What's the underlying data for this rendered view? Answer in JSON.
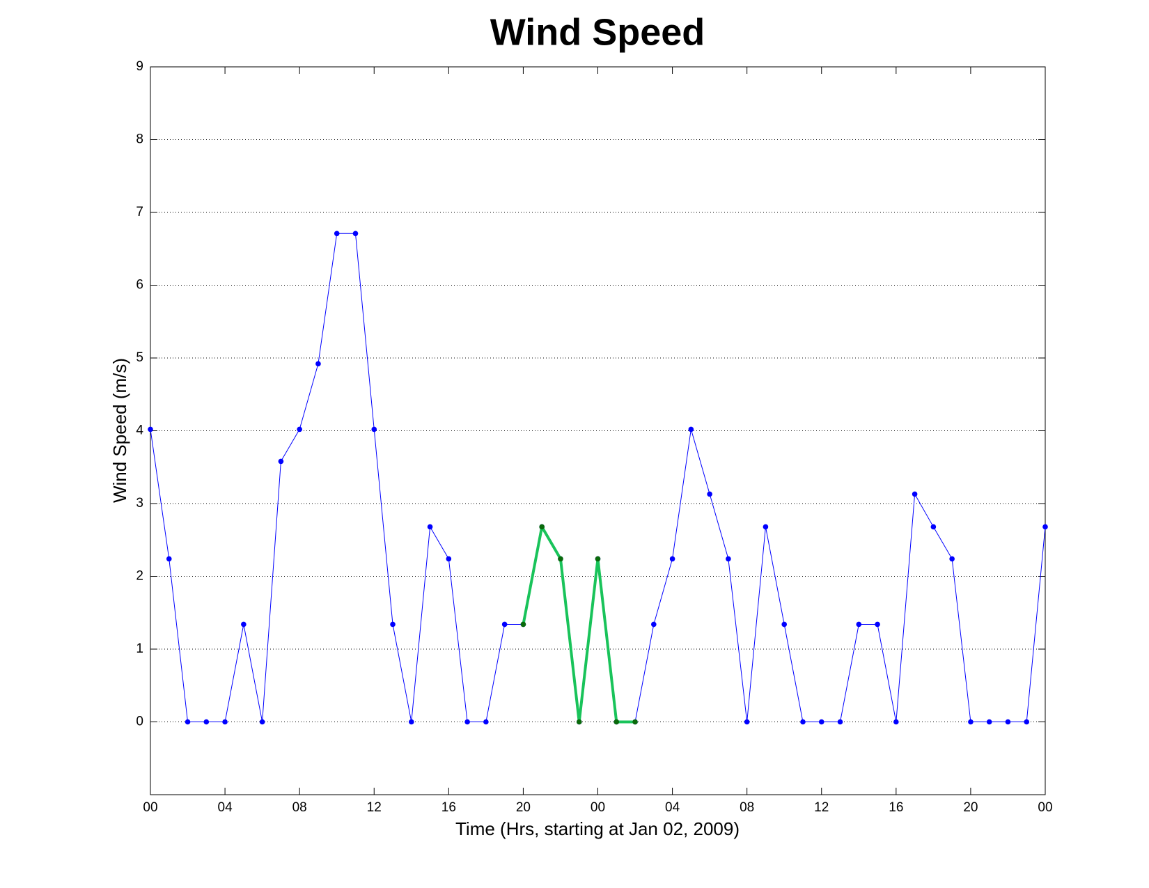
{
  "chart_data": {
    "type": "line",
    "title": "Wind Speed",
    "x_label": "Time (Hrs, starting at Jan 02, 2009)",
    "y_label": "Wind Speed (m/s)",
    "x": [
      0,
      1,
      2,
      3,
      4,
      5,
      6,
      7,
      8,
      9,
      10,
      11,
      12,
      13,
      14,
      15,
      16,
      17,
      18,
      19,
      20,
      21,
      22,
      23,
      24,
      25,
      26,
      27,
      28,
      29,
      30,
      31,
      32,
      33,
      34,
      35,
      36,
      37,
      38,
      39,
      40,
      41,
      42,
      43,
      44,
      45,
      46,
      47,
      48
    ],
    "series": [
      {
        "color": "#0000ff",
        "marker_color": "#0000ff",
        "line_width": 1,
        "values": [
          4.02,
          2.24,
          0,
          0,
          0,
          1.34,
          0,
          3.58,
          4.02,
          4.92,
          6.71,
          6.71,
          4.02,
          1.34,
          0,
          2.68,
          2.24,
          0,
          0,
          1.34,
          1.34,
          2.68,
          2.24,
          0,
          2.24,
          0,
          0,
          1.34,
          2.24,
          4.02,
          3.13,
          2.24,
          0,
          2.68,
          1.34,
          0,
          0,
          0,
          1.34,
          1.34,
          0,
          3.13,
          2.68,
          2.24,
          0,
          0,
          0,
          0,
          2.68
        ]
      },
      {
        "color": "#19c35a",
        "marker_color": "#0a6a0a",
        "line_width": 4,
        "values": [
          null,
          null,
          null,
          null,
          null,
          null,
          null,
          null,
          null,
          null,
          null,
          null,
          null,
          null,
          null,
          null,
          null,
          null,
          null,
          null,
          1.34,
          2.68,
          2.24,
          0,
          2.24,
          0,
          0,
          null,
          null,
          null,
          null,
          null,
          null,
          null,
          null,
          null,
          null,
          null,
          null,
          null,
          null,
          null,
          null,
          null,
          null,
          null,
          null,
          null,
          null
        ]
      }
    ],
    "xlim": [
      0,
      48
    ],
    "xticks": [
      {
        "value": 0,
        "label": "00"
      },
      {
        "value": 4,
        "label": "04"
      },
      {
        "value": 8,
        "label": "08"
      },
      {
        "value": 12,
        "label": "12"
      },
      {
        "value": 16,
        "label": "16"
      },
      {
        "value": 20,
        "label": "20"
      },
      {
        "value": 24,
        "label": "00"
      },
      {
        "value": 28,
        "label": "04"
      },
      {
        "value": 32,
        "label": "08"
      },
      {
        "value": 36,
        "label": "12"
      },
      {
        "value": 40,
        "label": "16"
      },
      {
        "value": 44,
        "label": "20"
      },
      {
        "value": 48,
        "label": "00"
      }
    ],
    "ylim": [
      -1,
      9
    ],
    "yticks": [
      0,
      1,
      2,
      3,
      4,
      5,
      6,
      7,
      8,
      9
    ],
    "grid": true
  }
}
